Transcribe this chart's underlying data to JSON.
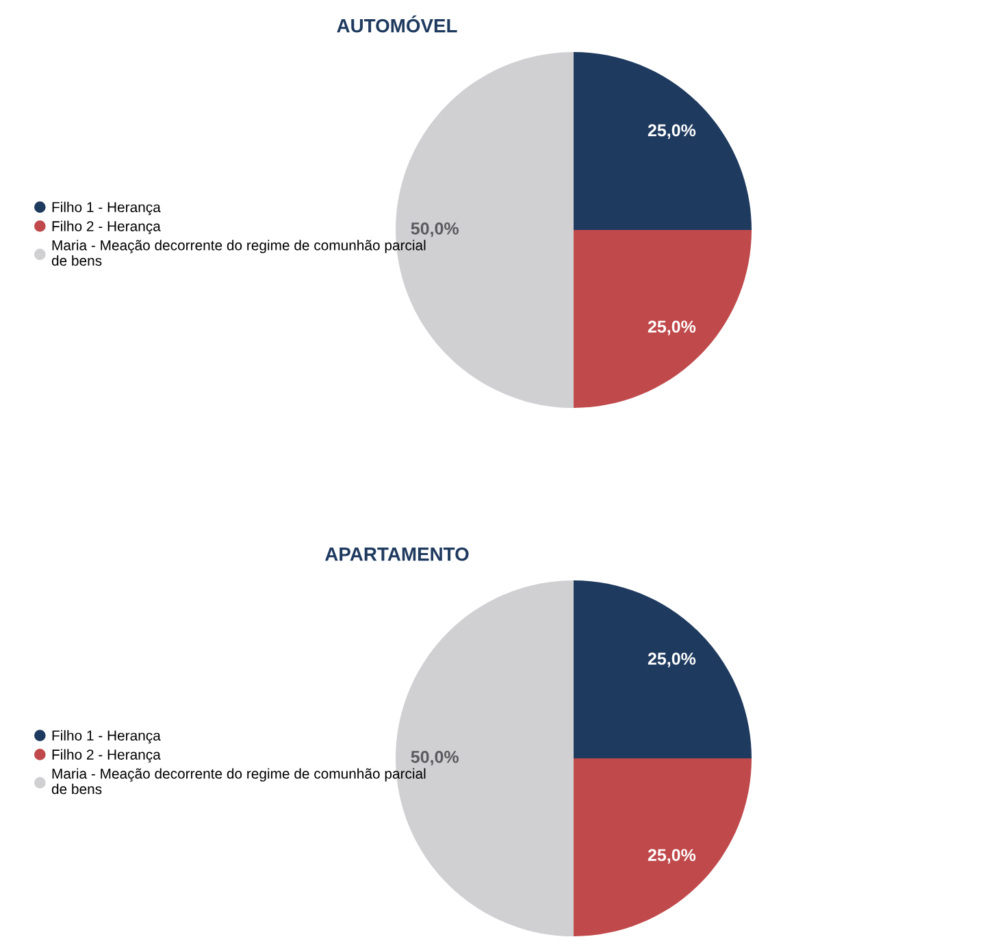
{
  "chart_data": [
    {
      "type": "pie",
      "title": "AUTOMÓVEL",
      "categories": [
        "Filho 1 - Herança",
        "Filho 2 - Herança",
        "Maria - Meação decorrente do regime de comunhão parcial de bens"
      ],
      "values": [
        25,
        25,
        50
      ],
      "colors": [
        "#1f3a5f",
        "#c0494b",
        "#d0cfd2"
      ],
      "value_labels": [
        "25,0%",
        "25,0%",
        "50,0%"
      ],
      "legend": "left"
    },
    {
      "type": "pie",
      "title": "APARTAMENTO",
      "categories": [
        "Filho 1 - Herança",
        "Filho 2 - Herança",
        "Maria - Meação decorrente do regime de comunhão parcial de bens"
      ],
      "values": [
        25,
        25,
        50
      ],
      "colors": [
        "#1f3a5f",
        "#c0494b",
        "#d0cfd2"
      ],
      "value_labels": [
        "25,0%",
        "25,0%",
        "50,0%"
      ],
      "legend": "left"
    }
  ]
}
